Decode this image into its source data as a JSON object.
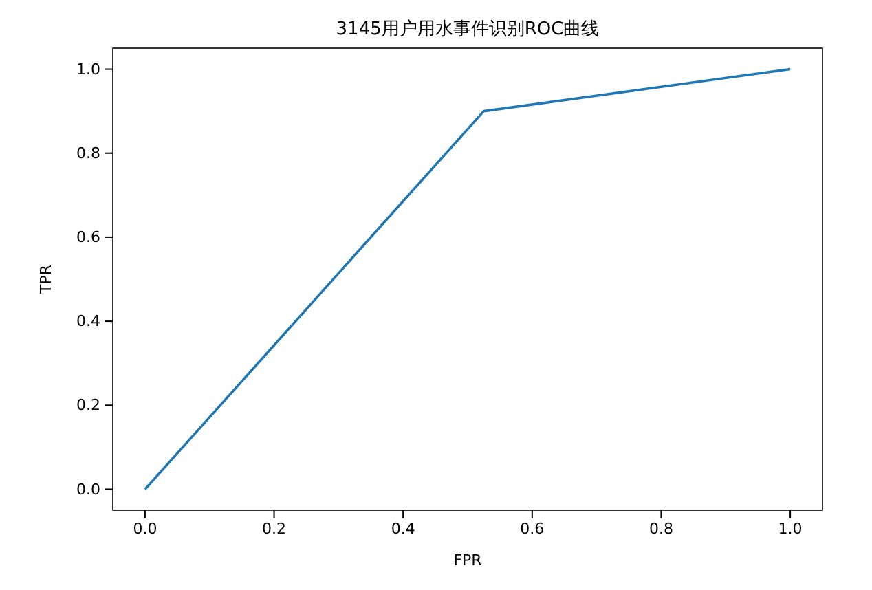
{
  "chart_data": {
    "type": "line",
    "title": "3145用户用水事件识别ROC曲线",
    "xlabel": "FPR",
    "ylabel": "TPR",
    "x": [
      0,
      0.525,
      1
    ],
    "series": [
      {
        "color": "#1f77b4",
        "values": [
          0,
          0.9,
          1
        ]
      }
    ],
    "xlim": [
      -0.05,
      1.05
    ],
    "ylim": [
      -0.05,
      1.05
    ],
    "xticks": [
      {
        "value": 0,
        "label": "0.0"
      },
      {
        "value": 0.2,
        "label": "0.2"
      },
      {
        "value": 0.4,
        "label": "0.4"
      },
      {
        "value": 0.6,
        "label": "0.6"
      },
      {
        "value": 0.8,
        "label": "0.8"
      },
      {
        "value": 1,
        "label": "1.0"
      }
    ],
    "yticks": [
      {
        "value": 0,
        "label": "0.0"
      },
      {
        "value": 0.2,
        "label": "0.2"
      },
      {
        "value": 0.4,
        "label": "0.4"
      },
      {
        "value": 0.6,
        "label": "0.6"
      },
      {
        "value": 0.8,
        "label": "0.8"
      },
      {
        "value": 1,
        "label": "1.0"
      }
    ],
    "grid": false,
    "marker": "none",
    "line_style": "solid"
  }
}
